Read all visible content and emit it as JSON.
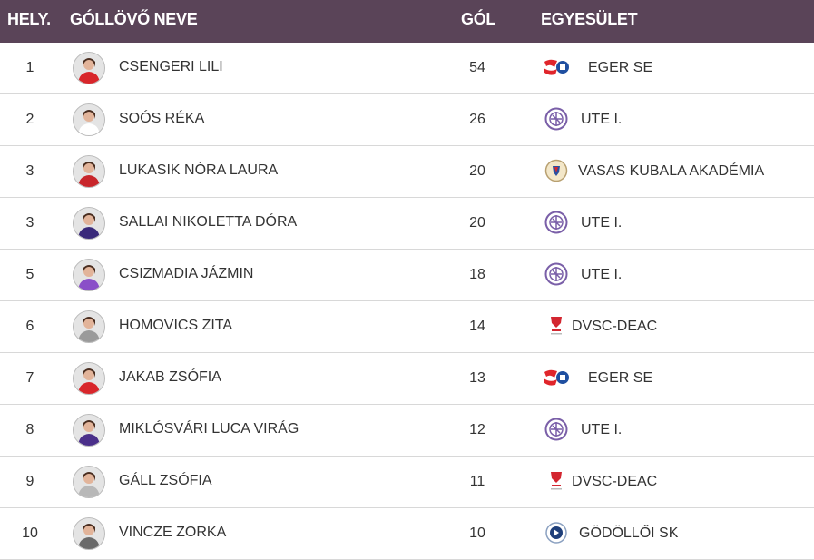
{
  "header": {
    "rank": "HELY.",
    "name": "GÓLLÖVŐ NEVE",
    "goals": "GÓL",
    "club": "EGYESÜLET"
  },
  "colors": {
    "header_bg": "#5a4458",
    "ute": "#7a5fa8",
    "eger_red": "#e0252b",
    "eger_blue": "#1f4fa0",
    "dvsc": "#d32630"
  },
  "rows": [
    {
      "rank": "1",
      "name": "CSENGERI LILI",
      "goals": "54",
      "club": "EGER SE",
      "logo": "eger-se-logo-icon",
      "shirt": "#d8262b"
    },
    {
      "rank": "2",
      "name": "SOÓS RÉKA",
      "goals": "26",
      "club": "UTE I.",
      "logo": "ute-logo-icon",
      "shirt": "#ffffff"
    },
    {
      "rank": "3",
      "name": "LUKASIK NÓRA LAURA",
      "goals": "20",
      "club": "VASAS KUBALA AKADÉMIA",
      "logo": "vasas-logo-icon",
      "shirt": "#c8262b"
    },
    {
      "rank": "3",
      "name": "SALLAI NIKOLETTA DÓRA",
      "goals": "20",
      "club": "UTE I.",
      "logo": "ute-logo-icon",
      "shirt": "#3a2a7a"
    },
    {
      "rank": "5",
      "name": "CSIZMADIA JÁZMIN",
      "goals": "18",
      "club": "UTE I.",
      "logo": "ute-logo-icon",
      "shirt": "#8a4fc8"
    },
    {
      "rank": "6",
      "name": "HOMOVICS ZITA",
      "goals": "14",
      "club": "DVSC-DEAC",
      "logo": "dvsc-logo-icon",
      "shirt": "#9a9a9a"
    },
    {
      "rank": "7",
      "name": "JAKAB ZSÓFIA",
      "goals": "13",
      "club": "EGER SE",
      "logo": "eger-se-logo-icon",
      "shirt": "#d8262b"
    },
    {
      "rank": "8",
      "name": "MIKLÓSVÁRI LUCA VIRÁG",
      "goals": "12",
      "club": "UTE I.",
      "logo": "ute-logo-icon",
      "shirt": "#4a2f8a"
    },
    {
      "rank": "9",
      "name": "GÁLL ZSÓFIA",
      "goals": "11",
      "club": "DVSC-DEAC",
      "logo": "dvsc-logo-icon",
      "shirt": "#b8b8b8"
    },
    {
      "rank": "10",
      "name": "VINCZE ZORKA",
      "goals": "10",
      "club": "GÖDÖLLŐI SK",
      "logo": "godolloi-sk-logo-icon",
      "shirt": "#6a6a6a"
    }
  ]
}
